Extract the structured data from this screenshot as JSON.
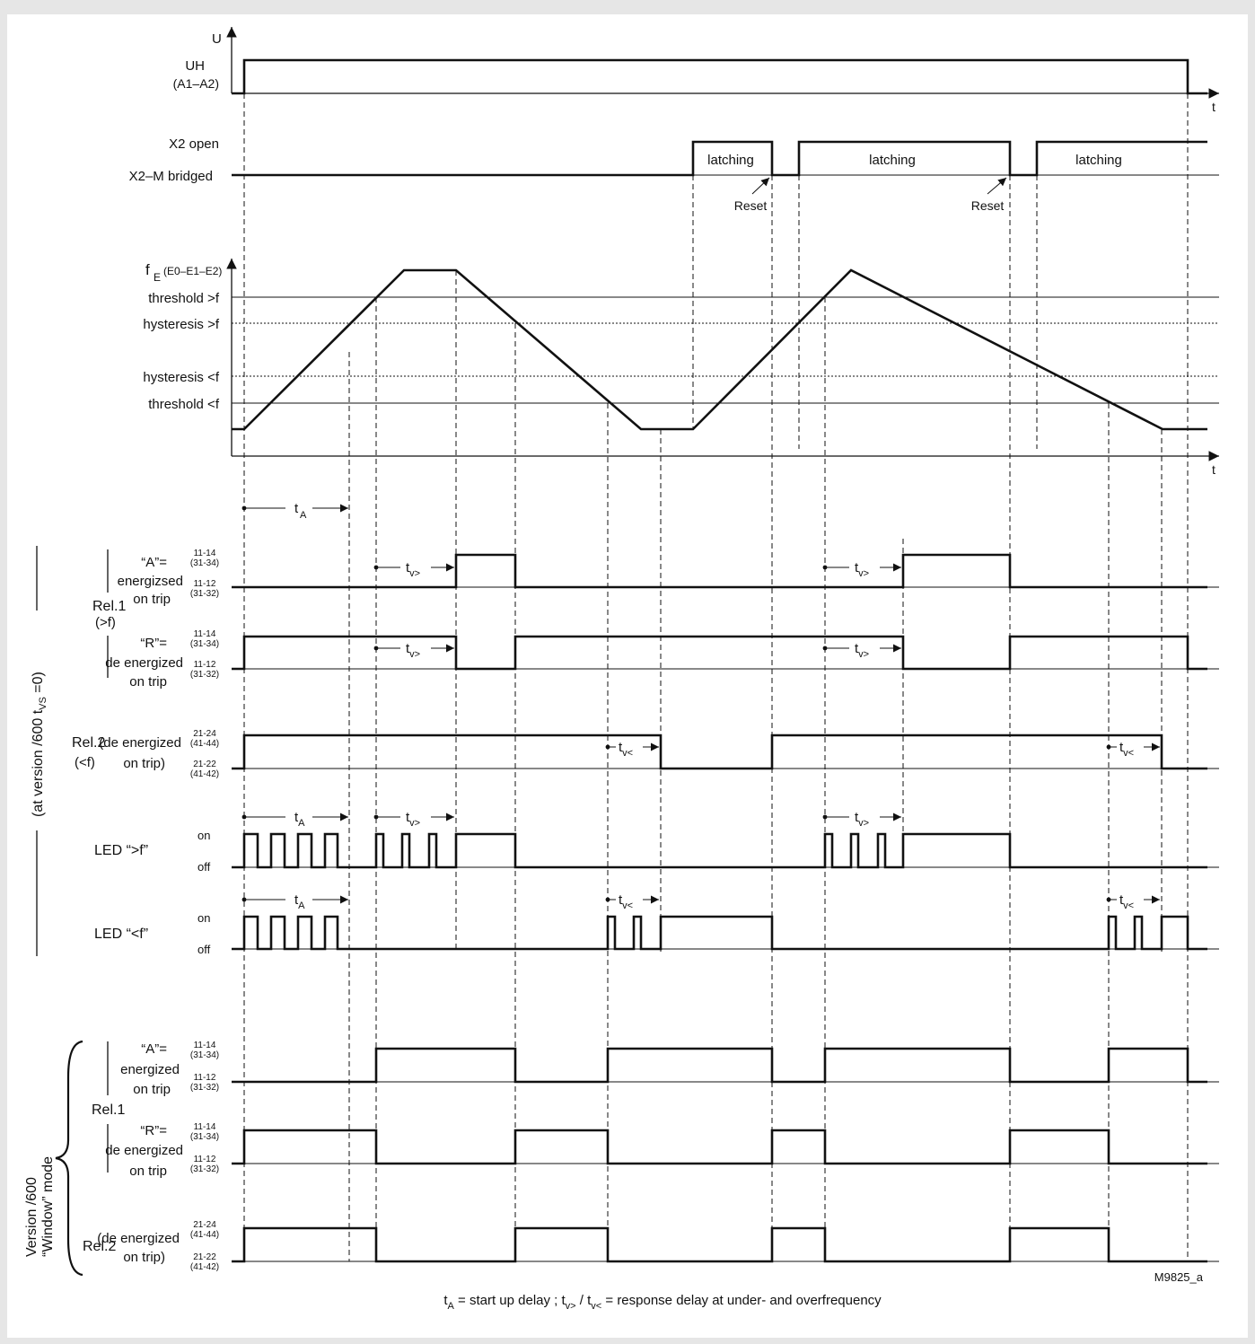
{
  "axes": {
    "u": "U",
    "t": "t",
    "fe": "f",
    "fe_sub": "E",
    "fe_terms": "(E0–E1–E2)"
  },
  "rows": {
    "uh": "UH",
    "uh_terms": "(A1–A2)",
    "x2_open": "X2 open",
    "x2_bridged": "X2–M bridged",
    "threshold_high": "threshold >f",
    "hysteresis_high": "hysteresis >f",
    "hysteresis_low": "hysteresis <f",
    "threshold_low": "threshold <f",
    "latching": "latching",
    "reset": "Reset"
  },
  "timing": {
    "t": "t",
    "ta_sub": "A",
    "tv": "t",
    "tv_gt_sub": "v>",
    "tv_lt_sub": "v<"
  },
  "section_top": {
    "label": "(at version /600  t",
    "sub": "VS",
    "tail": " =0)"
  },
  "rel1": {
    "name": "Rel.1",
    "sub": "(>f)",
    "a_label": "“A”=",
    "a_desc1": "energizsed",
    "a_desc2": "on trip",
    "r_label": "“R”=",
    "r_desc1": "de energized",
    "r_desc2": "on trip"
  },
  "rel2": {
    "name": "Rel.2",
    "sub": "(<f)",
    "desc1": "(de energized",
    "desc2": "on trip)"
  },
  "terminals": {
    "t1114": "11-14",
    "t3134": "(31-34)",
    "t1112": "11-12",
    "t3132": "(31-32)",
    "t2124": "21-24",
    "t4144": "(41-44)",
    "t2122": "21-22",
    "t4142": "(41-42)"
  },
  "led": {
    "high": "LED “>f”",
    "low": "LED “<f”",
    "on": "on",
    "off": "off"
  },
  "section_window": {
    "line1": "Version /600",
    "line2": "“Window” mode"
  },
  "win": {
    "rel1": "Rel.1",
    "a_label": "“A”=",
    "a_desc1": "energized",
    "a_desc2": "on trip",
    "r_label": "“R”=",
    "r_desc1": "de energized",
    "r_desc2": "on trip",
    "rel2": "Rel.2",
    "rel2_desc1": "(de energized",
    "rel2_desc2": "on trip)"
  },
  "figure_id": "M9825_a",
  "footer": {
    "t": "t",
    "sub_a": "A",
    "p1": " = start up delay ;  t",
    "sub_vgt": "v>",
    "p2": " / t",
    "sub_vlt": "v<",
    "p3": " = response delay at under- and overfrequency"
  }
}
